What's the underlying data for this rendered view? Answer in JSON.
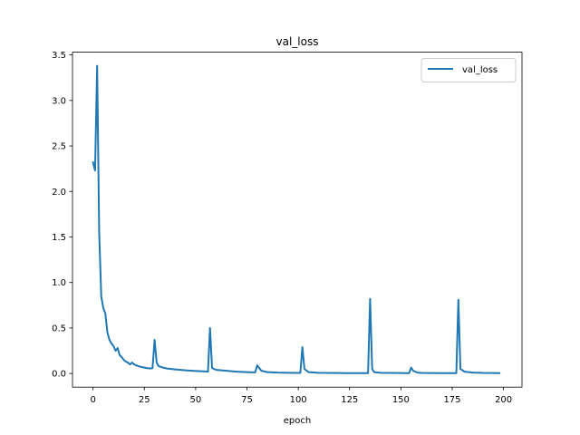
{
  "chart_data": {
    "type": "line",
    "title": "val_loss",
    "xlabel": "epoch",
    "ylabel": "",
    "xlim": [
      -10,
      209
    ],
    "ylim": [
      -0.15,
      3.53
    ],
    "xticks": [
      0,
      25,
      50,
      75,
      100,
      125,
      150,
      175,
      200
    ],
    "yticks": [
      0.0,
      0.5,
      1.0,
      1.5,
      2.0,
      2.5,
      3.0,
      3.5
    ],
    "xtick_labels": [
      "0",
      "25",
      "50",
      "75",
      "100",
      "125",
      "150",
      "175",
      "200"
    ],
    "ytick_labels": [
      "0.0",
      "0.5",
      "1.0",
      "1.5",
      "2.0",
      "2.5",
      "3.0",
      "3.5"
    ],
    "grid": false,
    "legend": {
      "position": "upper right",
      "entries": [
        "val_loss"
      ]
    },
    "series": [
      {
        "name": "val_loss",
        "color": "#1f77b4",
        "x": [
          0,
          1,
          2,
          3,
          4,
          5,
          6,
          7,
          8,
          9,
          10,
          11,
          12,
          13,
          14,
          15,
          16,
          17,
          18,
          19,
          20,
          22,
          24,
          26,
          28,
          29,
          30,
          31,
          32,
          34,
          36,
          40,
          45,
          50,
          55,
          56,
          57,
          58,
          60,
          65,
          70,
          75,
          78,
          79,
          80,
          82,
          85,
          90,
          95,
          100,
          101,
          102,
          103,
          105,
          110,
          115,
          120,
          125,
          130,
          133,
          134,
          135,
          136,
          137,
          140,
          145,
          150,
          153,
          154,
          155,
          156,
          158,
          160,
          165,
          170,
          175,
          176,
          177,
          178,
          179,
          181,
          185,
          190,
          195,
          198
        ],
        "values": [
          2.32,
          2.23,
          3.38,
          1.55,
          0.85,
          0.72,
          0.66,
          0.45,
          0.37,
          0.33,
          0.3,
          0.25,
          0.28,
          0.2,
          0.18,
          0.15,
          0.13,
          0.12,
          0.1,
          0.12,
          0.1,
          0.08,
          0.07,
          0.06,
          0.055,
          0.06,
          0.37,
          0.12,
          0.08,
          0.065,
          0.055,
          0.045,
          0.035,
          0.028,
          0.022,
          0.02,
          0.5,
          0.06,
          0.04,
          0.03,
          0.02,
          0.015,
          0.012,
          0.012,
          0.09,
          0.03,
          0.015,
          0.01,
          0.008,
          0.006,
          0.006,
          0.29,
          0.05,
          0.015,
          0.008,
          0.006,
          0.005,
          0.004,
          0.004,
          0.004,
          0.004,
          0.82,
          0.05,
          0.015,
          0.008,
          0.006,
          0.005,
          0.004,
          0.004,
          0.065,
          0.03,
          0.01,
          0.006,
          0.005,
          0.004,
          0.004,
          0.004,
          0.004,
          0.81,
          0.05,
          0.02,
          0.01,
          0.006,
          0.005,
          0.004
        ]
      }
    ]
  }
}
